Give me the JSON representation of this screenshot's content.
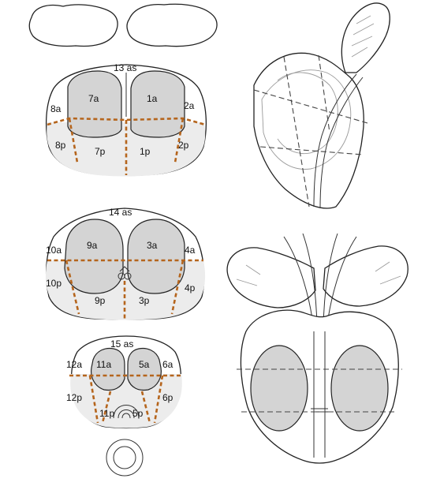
{
  "colors": {
    "zone_fill": "#d4d4d4",
    "peripheral_fill": "#ececec",
    "dividers": "#b5651d",
    "outline": "#222222"
  },
  "sections": {
    "base": {
      "labels": {
        "as": "13 as",
        "r_ant": "7a",
        "l_ant": "1a",
        "r_lat_ant": "8a",
        "l_lat_ant": "2a",
        "r_lat_post": "8p",
        "r_post": "7p",
        "l_post": "1p",
        "l_lat_post": "2p"
      }
    },
    "mid": {
      "labels": {
        "as": "14 as",
        "r_ant": "9a",
        "l_ant": "3a",
        "r_lat_ant": "10a",
        "l_lat_ant": "4a",
        "r_lat_post": "10p",
        "r_post": "9p",
        "l_post": "3p",
        "l_lat_post": "4p"
      }
    },
    "apex": {
      "labels": {
        "as": "15 as",
        "r_ant": "11a",
        "l_ant": "5a",
        "r_lat_ant": "12a",
        "l_lat_ant": "6a",
        "r_lat_post": "12p",
        "r_post": "11p",
        "l_post": "5p",
        "l_lat_post": "6p"
      }
    }
  },
  "icons": [
    "seminal-vesicle",
    "urethra-ring",
    "sagittal-prostate",
    "coronal-prostate"
  ]
}
